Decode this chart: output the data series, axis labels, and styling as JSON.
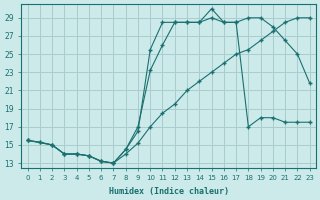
{
  "xlabel": "Humidex (Indice chaleur)",
  "bg_color": "#cceaea",
  "grid_color": "#aacccc",
  "line_color": "#1a7070",
  "xlim": [
    -0.5,
    23.5
  ],
  "ylim": [
    12.5,
    30.5
  ],
  "xticks": [
    0,
    1,
    2,
    3,
    4,
    5,
    6,
    7,
    8,
    9,
    10,
    11,
    12,
    13,
    14,
    15,
    16,
    17,
    18,
    19,
    20,
    21,
    22,
    23
  ],
  "yticks": [
    13,
    15,
    17,
    19,
    21,
    23,
    25,
    27,
    29
  ],
  "line1_x": [
    0,
    1,
    2,
    3,
    4,
    5,
    6,
    7,
    8,
    9,
    10,
    11,
    12,
    13,
    14,
    15,
    16,
    17,
    18,
    19,
    20,
    21,
    22,
    23
  ],
  "line1_y": [
    15.5,
    15.3,
    15.0,
    14.0,
    14.0,
    13.8,
    13.2,
    13.0,
    14.0,
    15.2,
    17.0,
    18.5,
    19.5,
    21.0,
    22.0,
    23.0,
    24.0,
    25.0,
    25.5,
    26.5,
    27.5,
    28.5,
    29.0,
    29.0
  ],
  "line2_x": [
    0,
    1,
    2,
    3,
    4,
    5,
    6,
    7,
    8,
    9,
    10,
    11,
    12,
    13,
    14,
    15,
    16,
    17,
    18,
    19,
    20,
    21,
    22,
    23
  ],
  "line2_y": [
    15.5,
    15.3,
    15.0,
    14.0,
    14.0,
    13.8,
    13.2,
    13.0,
    14.5,
    17.0,
    23.2,
    26.0,
    28.5,
    28.5,
    28.5,
    29.0,
    28.5,
    28.5,
    29.0,
    29.0,
    28.0,
    26.5,
    25.0,
    21.8
  ],
  "line3_x": [
    0,
    2,
    3,
    4,
    5,
    6,
    7,
    8,
    9,
    10,
    11,
    12,
    13,
    14,
    15,
    16,
    17,
    18,
    19,
    20,
    21,
    22,
    23
  ],
  "line3_y": [
    15.5,
    15.0,
    14.0,
    14.0,
    13.8,
    13.2,
    13.0,
    14.5,
    16.5,
    25.5,
    28.5,
    28.5,
    28.5,
    28.5,
    30.0,
    28.5,
    28.5,
    17.0,
    18.0,
    18.0,
    17.5,
    17.5,
    17.5
  ]
}
